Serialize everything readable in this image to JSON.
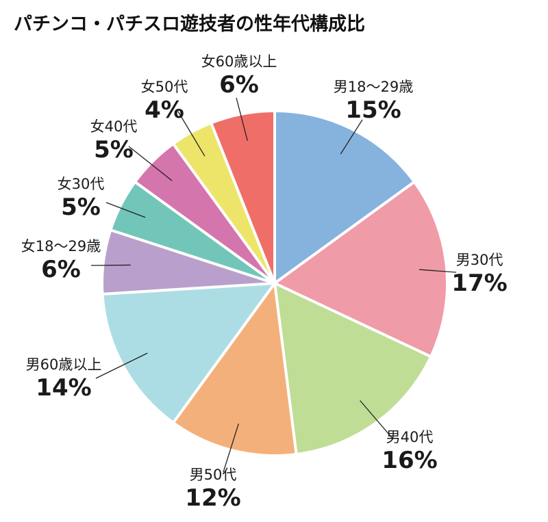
{
  "chart_data": {
    "type": "pie",
    "title": "パチンコ・パチスロ遊技者の性年代構成比",
    "start_angle_deg": 0,
    "direction": "clockwise",
    "slices": [
      {
        "label": "男18〜29歳",
        "value": 15,
        "display": "15%",
        "color": "#86b2de"
      },
      {
        "label": "男30代",
        "value": 17,
        "display": "17%",
        "color": "#f09ba8"
      },
      {
        "label": "男40代",
        "value": 16,
        "display": "16%",
        "color": "#c0dd95"
      },
      {
        "label": "男50代",
        "value": 12,
        "display": "12%",
        "color": "#f4b07a"
      },
      {
        "label": "男60歳以上",
        "value": 14,
        "display": "14%",
        "color": "#acdde5"
      },
      {
        "label": "女18〜29歳",
        "value": 6,
        "display": "6%",
        "color": "#b9a0cc"
      },
      {
        "label": "女30代",
        "value": 5,
        "display": "5%",
        "color": "#72c6b9"
      },
      {
        "label": "女40代",
        "value": 5,
        "display": "5%",
        "color": "#d575ad"
      },
      {
        "label": "女50代",
        "value": 4,
        "display": "4%",
        "color": "#ece56a"
      },
      {
        "label": "女60歳以上",
        "value": 6,
        "display": "6%",
        "color": "#ef6f68"
      }
    ]
  }
}
